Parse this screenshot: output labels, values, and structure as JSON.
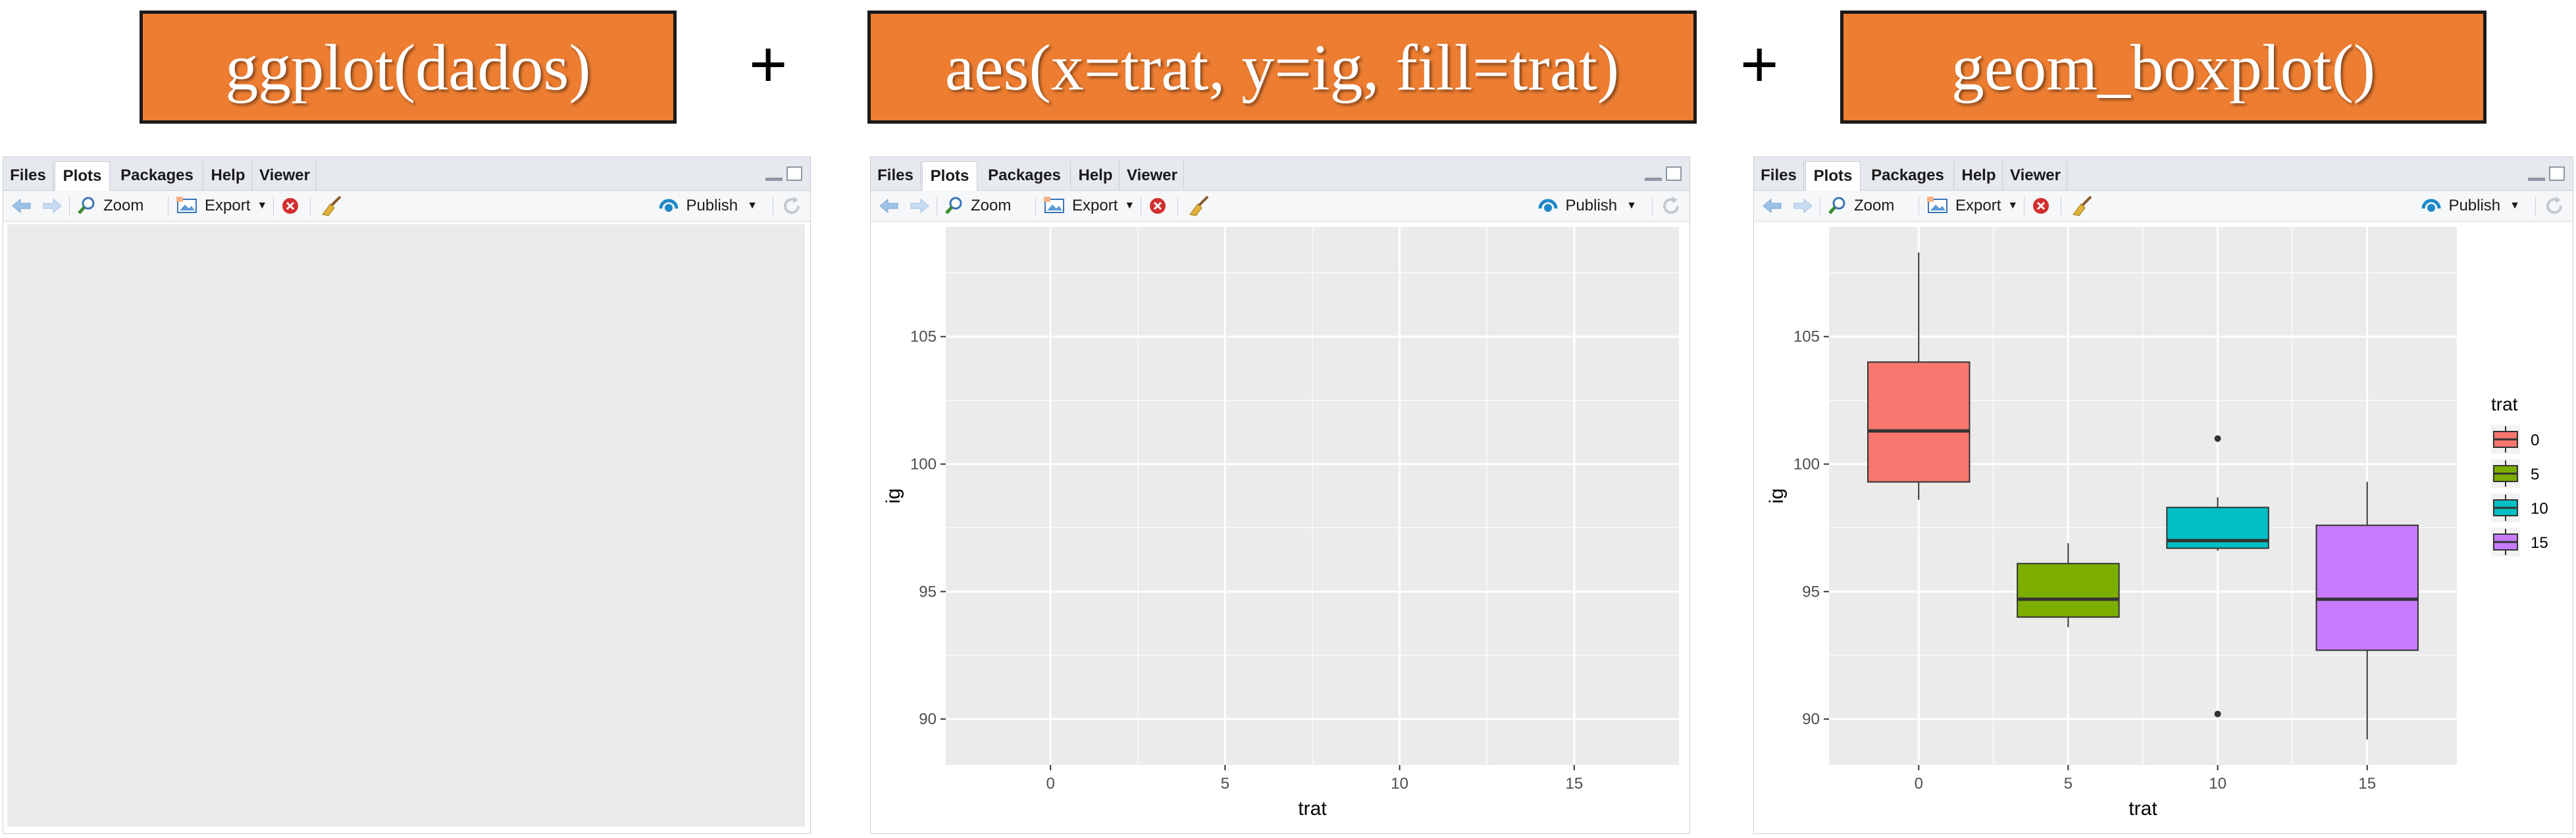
{
  "banners": [
    {
      "text": "ggplot(dados)"
    },
    {
      "text": "aes(x=trat, y=ig, fill=trat)"
    },
    {
      "text": "geom_boxplot()"
    }
  ],
  "plus": "+",
  "pane": {
    "tabs": [
      "Files",
      "Plots",
      "Packages",
      "Help",
      "Viewer"
    ],
    "active_tab": "Plots",
    "toolbar": {
      "zoom": "Zoom",
      "export": "Export",
      "publish": "Publish",
      "icons": [
        "back-arrow-icon",
        "forward-arrow-icon",
        "zoom-magnifier-icon",
        "export-image-icon",
        "remove-plot-icon",
        "clear-broom-icon",
        "publish-icon",
        "refresh-icon"
      ]
    }
  },
  "colors": {
    "banner_bg": "#ed7d31",
    "panel_bg": "#ebebeb",
    "grid": "#ffffff",
    "fill_0": "#f8766d",
    "fill_5": "#7cae00",
    "fill_10": "#00bfc4",
    "fill_15": "#c77cff"
  },
  "chart_data": [
    {
      "type": "blank",
      "xlabel": "",
      "ylabel": ""
    },
    {
      "type": "blank",
      "xlabel": "trat",
      "ylabel": "ig",
      "x_ticks": [
        "0",
        "5",
        "10",
        "15"
      ],
      "y_ticks": [
        "90",
        "95",
        "100",
        "105"
      ],
      "xlim": [
        -3,
        18
      ],
      "ylim": [
        88.2,
        109.3
      ],
      "grid": true
    },
    {
      "type": "box",
      "xlabel": "trat",
      "ylabel": "ig",
      "x_ticks": [
        "0",
        "5",
        "10",
        "15"
      ],
      "y_ticks": [
        "90",
        "95",
        "100",
        "105"
      ],
      "xlim": [
        -3,
        18
      ],
      "ylim": [
        88.2,
        109.3
      ],
      "grid": true,
      "legend": {
        "title": "trat",
        "position": "right",
        "entries": [
          "0",
          "5",
          "10",
          "15"
        ]
      },
      "boxes": [
        {
          "x": 0,
          "label": "0",
          "min": 98.6,
          "q1": 99.3,
          "median": 101.3,
          "q3": 104.0,
          "max": 108.3,
          "outliers": [],
          "color": "#f8766d"
        },
        {
          "x": 5,
          "label": "5",
          "min": 93.6,
          "q1": 94.0,
          "median": 94.7,
          "q3": 96.1,
          "max": 96.9,
          "outliers": [],
          "color": "#7cae00"
        },
        {
          "x": 10,
          "label": "10",
          "min": 96.6,
          "q1": 96.7,
          "median": 97.0,
          "q3": 98.3,
          "max": 98.7,
          "outliers": [
            101.0,
            90.2
          ],
          "color": "#00bfc4"
        },
        {
          "x": 15,
          "label": "15",
          "min": 89.2,
          "q1": 92.7,
          "median": 94.7,
          "q3": 97.6,
          "max": 99.3,
          "outliers": [],
          "color": "#c77cff"
        }
      ]
    }
  ]
}
